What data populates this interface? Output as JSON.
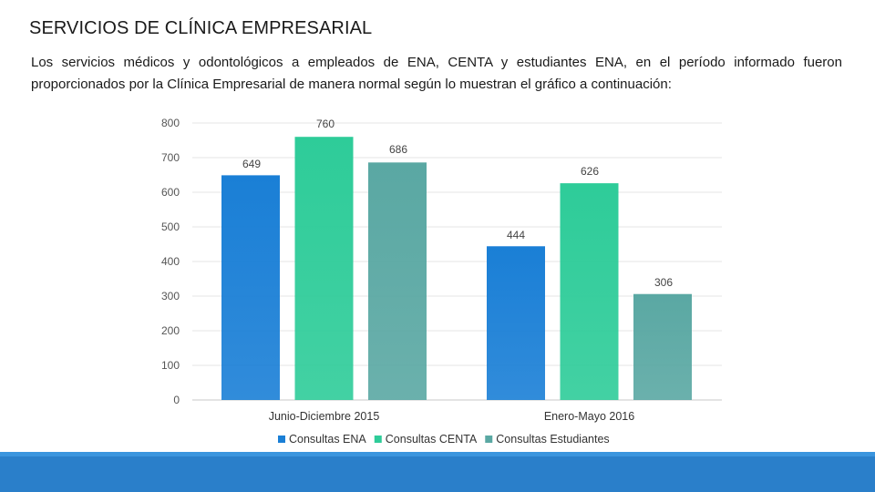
{
  "slide": {
    "title": "SERVICIOS DE CLÍNICA EMPRESARIAL",
    "body": "Los servicios médicos y odontológicos a empleados de ENA, CENTA y estudiantes ENA, en el período informado fueron proporcionados por la Clínica Empresarial de manera normal según lo muestran el gráfico a continuación:"
  },
  "colors": {
    "ena": "#1a7fd6",
    "centa": "#2ecc99",
    "estudiantes": "#5aa8a3",
    "footer": "#2a7fca"
  },
  "chart_data": {
    "type": "bar",
    "title": "",
    "xlabel": "",
    "ylabel": "",
    "categories": [
      "Junio-Diciembre 2015",
      "Enero-Mayo 2016"
    ],
    "series": [
      {
        "name": "Consultas ENA",
        "values": [
          649,
          444
        ],
        "color_key": "ena"
      },
      {
        "name": "Consultas CENTA",
        "values": [
          760,
          626
        ],
        "color_key": "centa"
      },
      {
        "name": "Consultas Estudiantes",
        "values": [
          686,
          306
        ],
        "color_key": "estudiantes"
      }
    ],
    "ylim": [
      0,
      800
    ],
    "yticks": [
      0,
      100,
      200,
      300,
      400,
      500,
      600,
      700,
      800
    ],
    "grid": true,
    "legend": "bottom"
  }
}
